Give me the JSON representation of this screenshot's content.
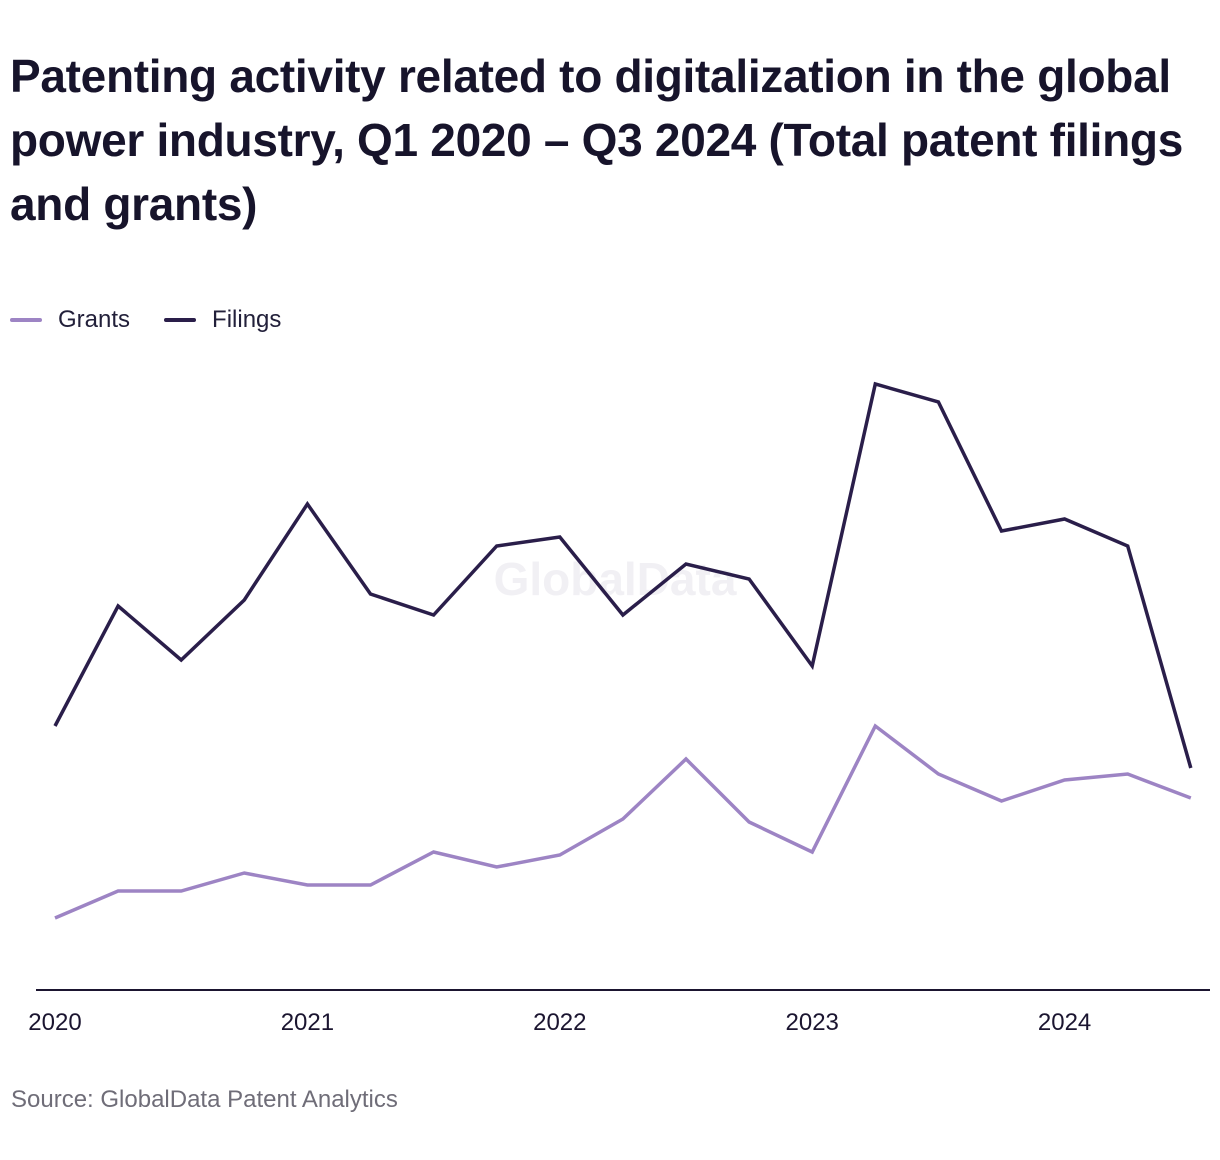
{
  "title": "Patenting activity related to digitalization in the global power industry, Q1 2020 – Q3 2024 (Total patent filings and grants)",
  "watermark": "GlobalData",
  "source": "Source: GlobalData Patent Analytics",
  "colors": {
    "grants": "#9d84c4",
    "filings": "#2a1e4a",
    "axis": "#1b1530"
  },
  "chart_data": {
    "type": "line",
    "title": "Patenting activity related to digitalization in the global power industry, Q1 2020 – Q3 2024 (Total patent filings and grants)",
    "xlabel": "",
    "ylabel": "",
    "x": [
      "Q1 2020",
      "Q2 2020",
      "Q3 2020",
      "Q4 2020",
      "Q1 2021",
      "Q2 2021",
      "Q3 2021",
      "Q4 2021",
      "Q1 2022",
      "Q2 2022",
      "Q3 2022",
      "Q4 2022",
      "Q1 2023",
      "Q2 2023",
      "Q3 2023",
      "Q4 2023",
      "Q1 2024",
      "Q2 2024",
      "Q3 2024"
    ],
    "x_tick_labels": [
      "2020",
      "2021",
      "2022",
      "2023",
      "2024"
    ],
    "y_axis_shown": false,
    "ylim": [
      0,
      100
    ],
    "grid": false,
    "legend_position": "top-left",
    "series": [
      {
        "name": "Grants",
        "color": "#9d84c4",
        "values": [
          12,
          16.5,
          16.5,
          19.5,
          17.5,
          17.5,
          23,
          20.5,
          22.5,
          28.5,
          38.5,
          28,
          23,
          44,
          36,
          31.5,
          35,
          36,
          32
        ]
      },
      {
        "name": "Filings",
        "color": "#2a1e4a",
        "values": [
          44,
          64,
          55,
          65,
          81,
          66,
          62.5,
          74,
          75.5,
          62.5,
          71,
          68.5,
          54,
          101,
          98,
          76.5,
          78.5,
          74,
          37
        ]
      }
    ]
  }
}
